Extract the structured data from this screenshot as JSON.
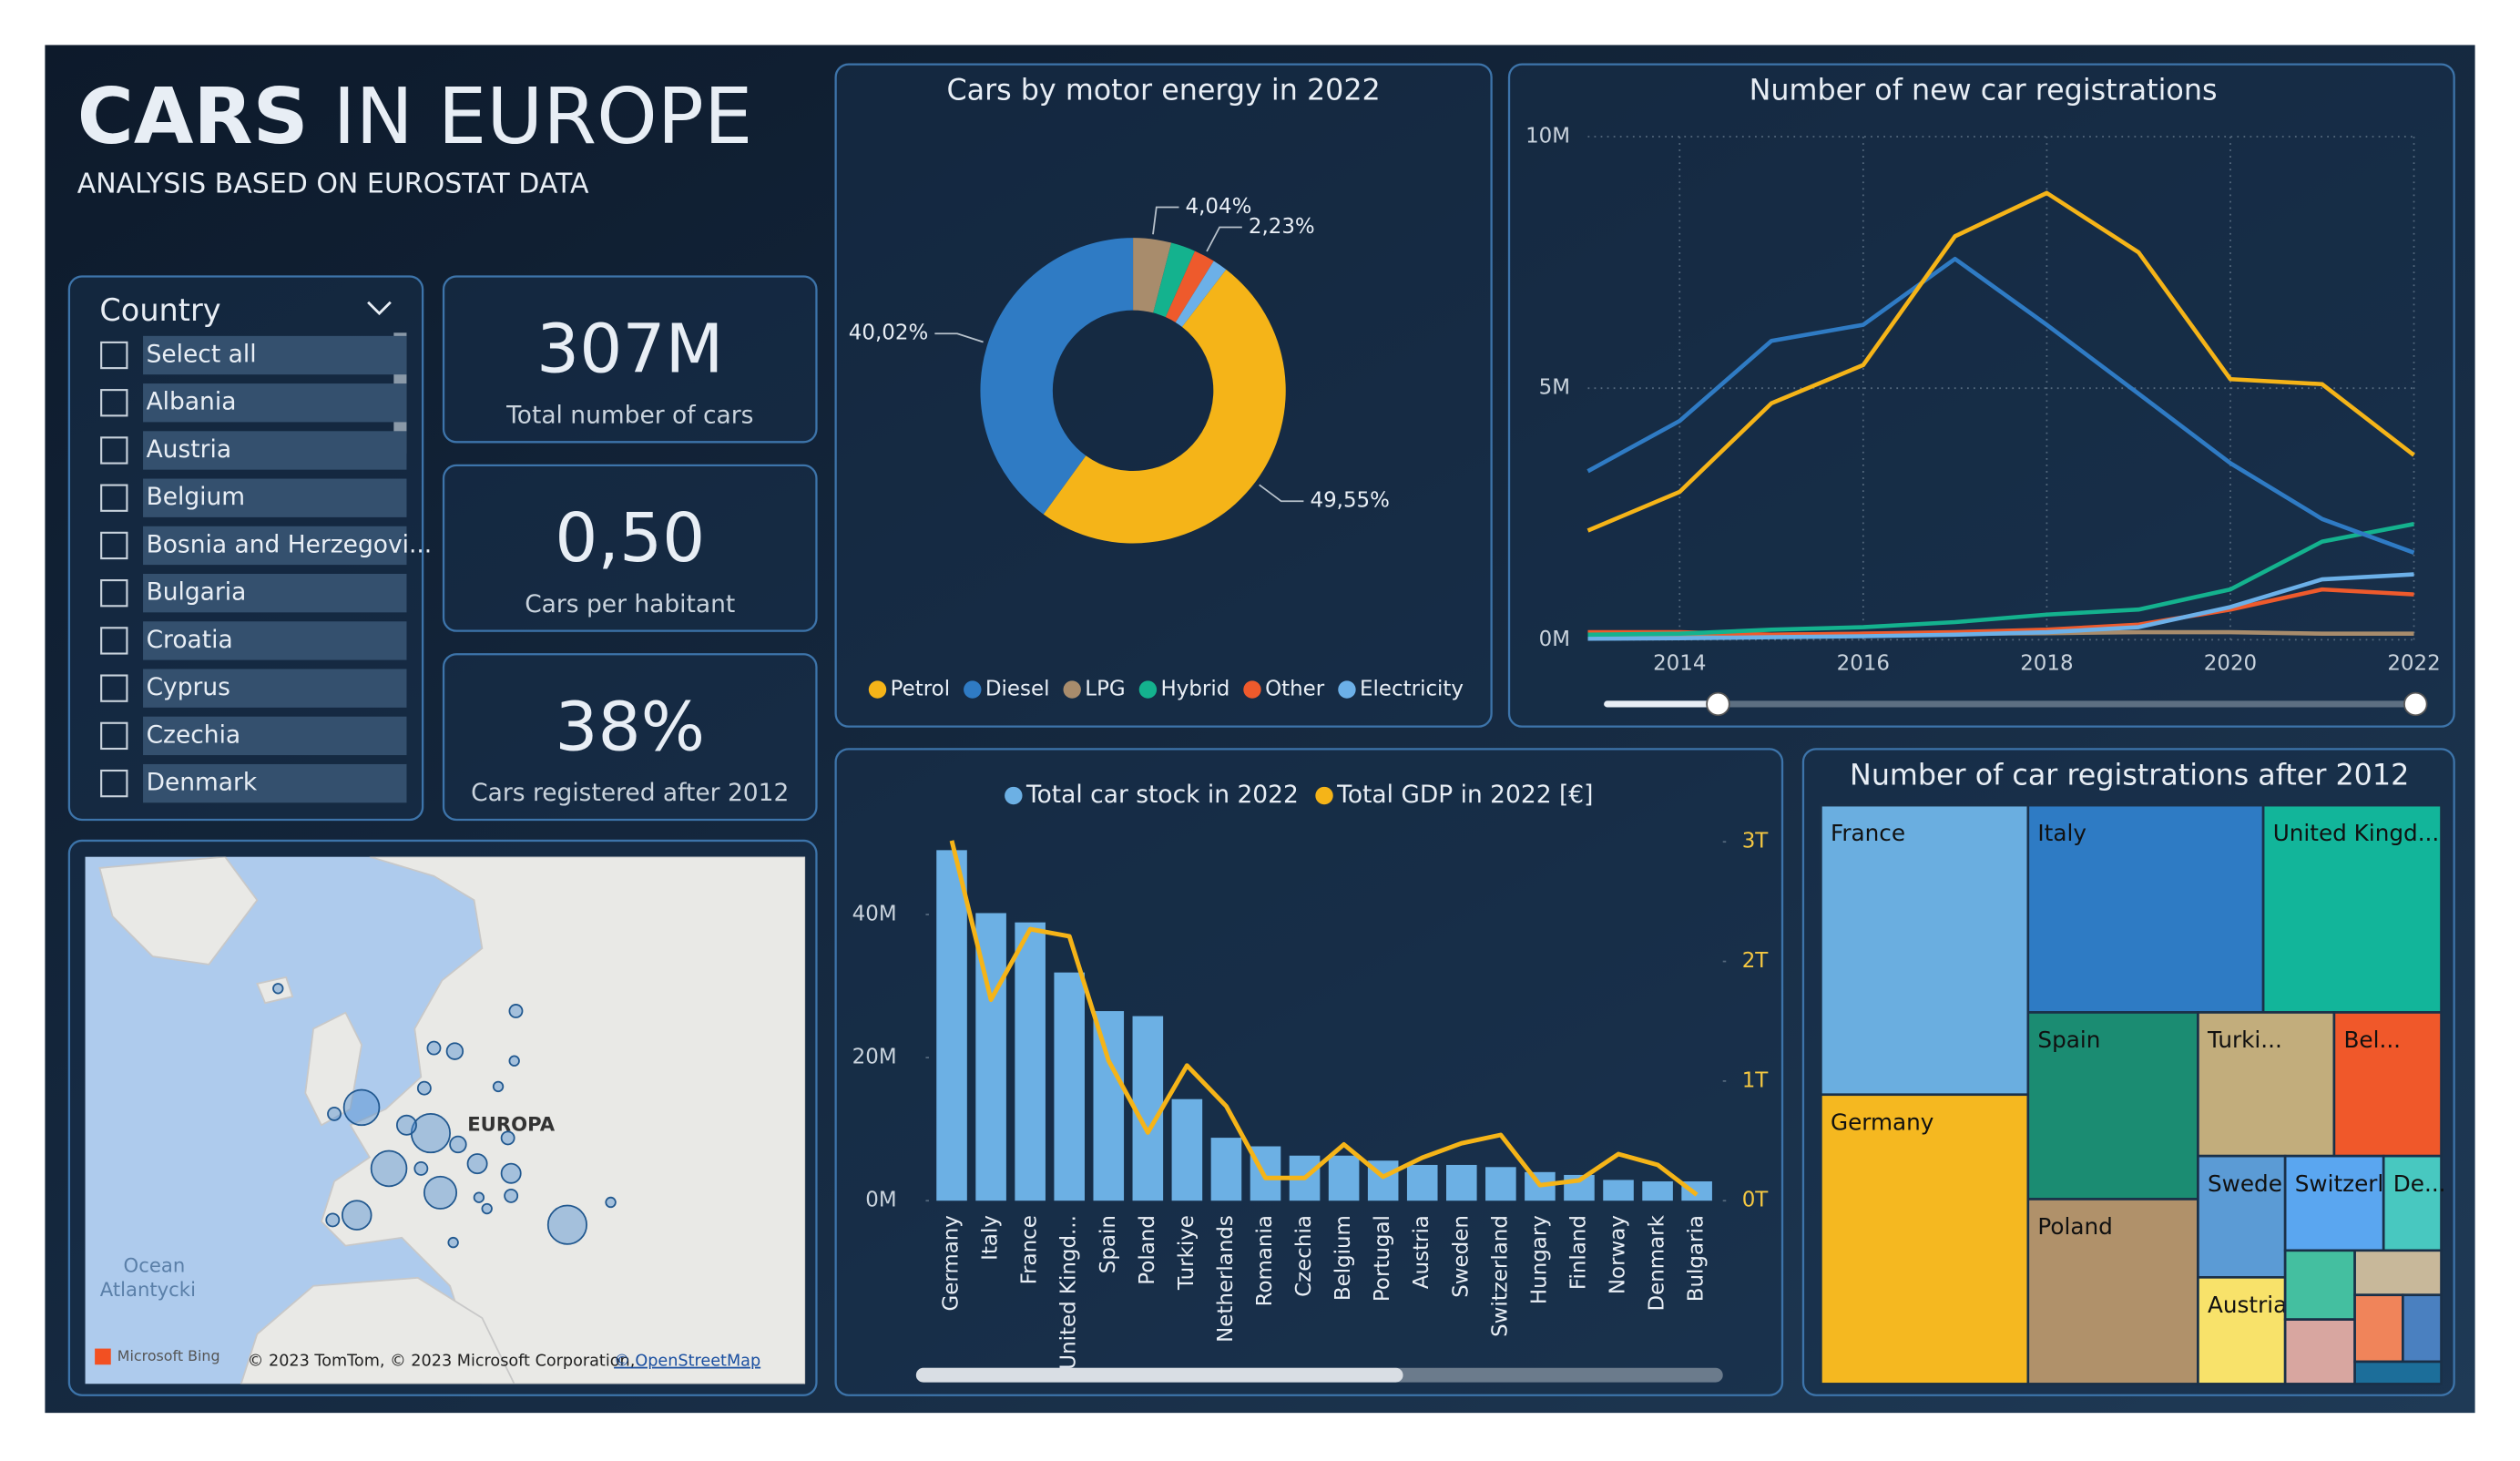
{
  "header": {
    "title_strong": "CARS",
    "title_light": "IN EUROPE",
    "subtitle": "ANALYSIS BASED ON EUROSTAT DATA"
  },
  "slicer": {
    "title": "Country",
    "items": [
      "Select all",
      "Albania",
      "Austria",
      "Belgium",
      "Bosnia and Herzegovi...",
      "Bulgaria",
      "Croatia",
      "Cyprus",
      "Czechia",
      "Denmark"
    ]
  },
  "kpis": [
    {
      "value": "307M",
      "label": "Total number of cars"
    },
    {
      "value": "0,50",
      "label": "Cars per habitant"
    },
    {
      "value": "38%",
      "label": "Cars registered after 2012"
    }
  ],
  "map": {
    "region": "EUROPA",
    "ocean": "Ocean",
    "ocean2": "Atlantycki",
    "brand": "Microsoft Bing",
    "credits": "© 2023 TomTom, © 2023 Microsoft Corporation,",
    "osm": "© OpenStreetMap"
  },
  "chart_data": [
    {
      "type": "donut",
      "title": "Cars by motor energy in 2022",
      "categories": [
        "Petrol",
        "Diesel",
        "LPG",
        "Hybrid",
        "Other",
        "Electricity"
      ],
      "values": [
        49.55,
        40.02,
        4.04,
        2.6,
        2.23,
        1.56
      ],
      "value_labels": [
        "49,55%",
        "40,02%",
        "4,04%",
        null,
        "2,23%",
        null
      ],
      "colors": [
        "#f5b418",
        "#2f7bc4",
        "#a88c6c",
        "#14b28e",
        "#ee5a2c",
        "#6cb0e8"
      ]
    },
    {
      "type": "line",
      "title": "Number of new car registrations",
      "x": [
        2013,
        2014,
        2015,
        2016,
        2017,
        2018,
        2019,
        2020,
        2021,
        2022
      ],
      "series": [
        {
          "color": "#f5b418",
          "values": [
            2.17,
            2.94,
            4.7,
            5.46,
            8.02,
            8.88,
            7.7,
            5.18,
            5.08,
            3.67
          ]
        },
        {
          "color": "#2f7bc4",
          "values": [
            3.35,
            4.35,
            5.94,
            6.26,
            7.57,
            6.26,
            4.89,
            3.51,
            2.4,
            1.73
          ]
        },
        {
          "color": "#14b28e",
          "values": [
            0.1,
            0.12,
            0.2,
            0.25,
            0.35,
            0.5,
            0.6,
            1.0,
            1.95,
            2.3
          ]
        },
        {
          "color": "#6cb0e8",
          "values": [
            0.02,
            0.03,
            0.05,
            0.07,
            0.1,
            0.15,
            0.25,
            0.65,
            1.2,
            1.3
          ]
        },
        {
          "color": "#ee5a2c",
          "values": [
            0.15,
            0.15,
            0.1,
            0.12,
            0.15,
            0.2,
            0.3,
            0.6,
            1.0,
            0.9
          ]
        },
        {
          "color": "#a88c6c",
          "values": [
            0.1,
            0.1,
            0.1,
            0.12,
            0.12,
            0.13,
            0.15,
            0.15,
            0.12,
            0.12
          ]
        }
      ],
      "xlim": [
        2013,
        2022
      ],
      "xticks": [
        2014,
        2016,
        2018,
        2020,
        2022
      ],
      "ylim": [
        0,
        10
      ],
      "yticks": [
        {
          "value": 0,
          "label": "0M"
        },
        {
          "value": 5,
          "label": "5M"
        },
        {
          "value": 10,
          "label": "10M"
        }
      ],
      "grid": true
    },
    {
      "type": "bar-line",
      "categories": [
        "Germany",
        "Italy",
        "France",
        "United Kingd...",
        "Spain",
        "Poland",
        "Turkiye",
        "Netherlands",
        "Romania",
        "Czechia",
        "Belgium",
        "Portugal",
        "Austria",
        "Sweden",
        "Switzerland",
        "Hungary",
        "Finland",
        "Norway",
        "Denmark",
        "Bulgaria"
      ],
      "series": [
        {
          "name": "Total car stock in 2022",
          "color": "#6cb0e4",
          "values": [
            49,
            40.2,
            38.9,
            31.9,
            26.5,
            25.8,
            14.2,
            8.8,
            7.6,
            6.3,
            6.3,
            5.6,
            5.0,
            5.0,
            4.7,
            4.0,
            3.6,
            2.9,
            2.7,
            2.7
          ]
        },
        {
          "name": "Total GDP in 2022 [€]",
          "color": "#f5b418",
          "axis": "y2",
          "values": [
            3.01,
            1.68,
            2.27,
            2.21,
            1.17,
            0.57,
            1.13,
            0.79,
            0.19,
            0.19,
            0.47,
            0.2,
            0.36,
            0.48,
            0.55,
            0.13,
            0.17,
            0.39,
            0.3,
            0.05
          ]
        }
      ],
      "ylim": [
        0,
        51
      ],
      "yticks": [
        {
          "value": 0,
          "label": "0M"
        },
        {
          "value": 20,
          "label": "20M"
        },
        {
          "value": 40,
          "label": "40M"
        }
      ],
      "y2lim": [
        0,
        3.05
      ],
      "y2ticks": [
        {
          "value": 0,
          "label": "0T"
        },
        {
          "value": 1,
          "label": "1T"
        },
        {
          "value": 2,
          "label": "2T"
        },
        {
          "value": 3,
          "label": "3T"
        }
      ]
    },
    {
      "type": "treemap",
      "title": "Number of car registrations after 2012",
      "categories": [
        "France",
        "Germany",
        "Italy",
        "United Kingd...",
        "Spain",
        "Poland",
        "Turki...",
        "Bel...",
        "Sweden",
        "Austria",
        "Switzerla...",
        "De...",
        null,
        null,
        null,
        null,
        null,
        null
      ],
      "values": [
        18.7,
        18.7,
        15.2,
        11.5,
        9.9,
        9.8,
        6.1,
        4.8,
        3.3,
        2.9,
        2.9,
        1.7,
        1.5,
        1.4,
        1.2,
        1.0,
        0.8,
        0.6
      ],
      "colors": [
        "#6aaee0",
        "#f5b820",
        "#2e7bc4",
        "#12b59a",
        "#1b8c72",
        "#b0916a",
        "#c2ad7c",
        "#f0582a",
        "#5b9bd5",
        "#f8e26a",
        "#5aa6f0",
        "#48c8c0",
        "#44bfa0",
        "#d8a6a0",
        "#c8b89a",
        "#f0845a",
        "#4a80c0",
        "#1c6e9a"
      ]
    }
  ]
}
